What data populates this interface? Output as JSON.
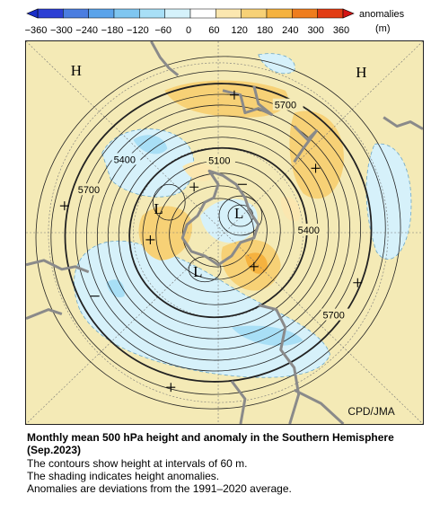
{
  "colorbar": {
    "ticks": [
      "−360",
      "−300",
      "−240",
      "−180",
      "−120",
      "−60",
      "0",
      "60",
      "120",
      "180",
      "240",
      "300",
      "360"
    ],
    "label_line1": "anomalies",
    "label_line2": "(m)",
    "colors": [
      "#2c3fd4",
      "#4b7de0",
      "#5aa3ea",
      "#7fc6f0",
      "#a8dff6",
      "#d5f2fb",
      "#ffffff",
      "#fbe7b0",
      "#f7d176",
      "#f5b23f",
      "#ef7d1e",
      "#e23c13"
    ]
  },
  "map": {
    "highs": [
      "H",
      "H"
    ],
    "lows": [
      "L",
      "L",
      "L"
    ],
    "contour_labels": [
      "5700",
      "5400",
      "5100",
      "5700",
      "5400",
      "5700"
    ],
    "credit": "CPD/JMA"
  },
  "caption": {
    "title": "Monthly mean 500 hPa height and anomaly in the Southern Hemisphere (Sep.2023)",
    "line1": "The contours show height at intervals of 60 m.",
    "line2": "The shading indicates height anomalies.",
    "line3": "Anomalies are deviations from the 1991–2020 average."
  }
}
